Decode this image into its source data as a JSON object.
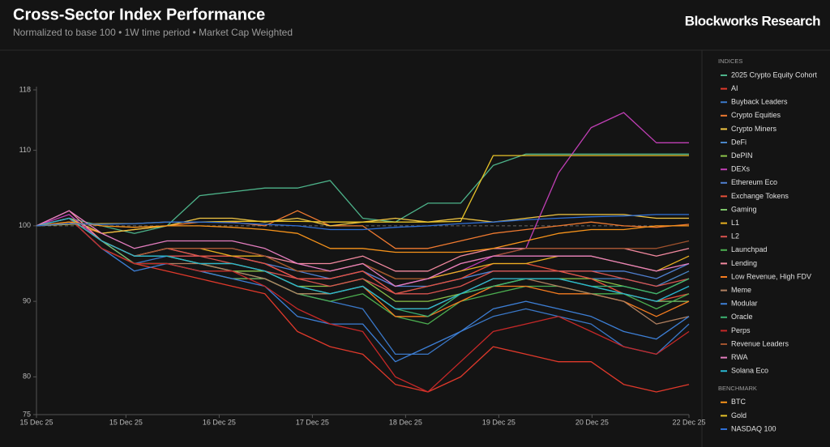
{
  "brand": "Blockworks Research",
  "chart_data": {
    "type": "line",
    "title": "Cross-Sector Index Performance",
    "subtitle": "Normalized to base 100 • 1W time period • Market Cap Weighted",
    "x": [
      0,
      0.35,
      0.7,
      1.05,
      1.4,
      1.75,
      2.1,
      2.45,
      2.8,
      3.15,
      3.5,
      3.85,
      4.2,
      4.55,
      4.9,
      5.25,
      5.6,
      5.95,
      6.3,
      6.65,
      7
    ],
    "xlim": [
      0,
      7
    ],
    "xticks": [
      {
        "value": 0,
        "label": "15 Dec 25"
      },
      {
        "value": 0.96,
        "label": "15 Dec 25"
      },
      {
        "value": 1.96,
        "label": "16 Dec 25"
      },
      {
        "value": 2.96,
        "label": "17 Dec 25"
      },
      {
        "value": 3.96,
        "label": "18 Dec 25"
      },
      {
        "value": 4.96,
        "label": "19 Dec 25"
      },
      {
        "value": 5.96,
        "label": "20 Dec 25"
      },
      {
        "value": 7,
        "label": "22 Dec 25"
      }
    ],
    "ylim": [
      75,
      118
    ],
    "yticks": [
      75,
      80,
      90,
      100,
      110,
      118
    ],
    "baseline": 100,
    "grid": false,
    "series": [
      {
        "name": "2025 Crypto Equity Cohort",
        "group": "INDICES",
        "color": "#4db38a",
        "values": [
          100,
          101,
          100,
          99,
          100,
          104,
          104.5,
          105,
          105,
          106,
          101,
          100.5,
          103,
          103,
          108,
          109.5,
          109.5,
          109.5,
          109.5,
          109.5,
          109.5
        ]
      },
      {
        "name": "AI",
        "group": "INDICES",
        "color": "#e0392b",
        "values": [
          100,
          101,
          97,
          95,
          94,
          93,
          92,
          91,
          86,
          84,
          83,
          79,
          78,
          80,
          84,
          83,
          82,
          82,
          79,
          78,
          79
        ]
      },
      {
        "name": "Buyback Leaders",
        "group": "INDICES",
        "color": "#3a78c9",
        "values": [
          100,
          101,
          98,
          95,
          96,
          95,
          94,
          93,
          91,
          90,
          89,
          83,
          83,
          86,
          88,
          89,
          88,
          87,
          84,
          83,
          87
        ]
      },
      {
        "name": "Crypto Equities",
        "group": "INDICES",
        "color": "#f07a30",
        "values": [
          100,
          100.5,
          99,
          99.5,
          100,
          100.5,
          100.5,
          100,
          102,
          100,
          100,
          97,
          97,
          98,
          99,
          99.5,
          100,
          100.5,
          100,
          99.8,
          100.2
        ]
      },
      {
        "name": "Crypto Miners",
        "group": "INDICES",
        "color": "#f2c744",
        "values": [
          100,
          101,
          99,
          99.5,
          100,
          101,
          101,
          100.5,
          101,
          100,
          100.5,
          101,
          100.5,
          101,
          100.5,
          101,
          101.5,
          101.5,
          101.5,
          101,
          101
        ]
      },
      {
        "name": "DeFi",
        "group": "INDICES",
        "color": "#4a86c8",
        "values": [
          100,
          101,
          98,
          96,
          97,
          96,
          96,
          95,
          93,
          93,
          94,
          91,
          92,
          93,
          94,
          94,
          94,
          93,
          93,
          92,
          94
        ]
      },
      {
        "name": "DePIN",
        "group": "INDICES",
        "color": "#8bc34a",
        "values": [
          100,
          101,
          98,
          96,
          96,
          95,
          94,
          94,
          92,
          92,
          93,
          90,
          90,
          91,
          92,
          93,
          93,
          93,
          92,
          91,
          93
        ]
      },
      {
        "name": "DEXs",
        "group": "INDICES",
        "color": "#c03fb5",
        "values": [
          100,
          101.5,
          98,
          96,
          96,
          96,
          96,
          95,
          93,
          93,
          94,
          92,
          93,
          94,
          96,
          97,
          107,
          113,
          115,
          111,
          111
        ]
      },
      {
        "name": "Ethereum Eco",
        "group": "INDICES",
        "color": "#4f7fd0",
        "values": [
          100,
          101,
          98,
          96,
          97,
          96,
          96,
          95,
          94,
          93,
          94,
          92,
          92,
          93,
          94,
          94,
          94,
          94,
          94,
          93,
          95
        ]
      },
      {
        "name": "Exchange Tokens",
        "group": "INDICES",
        "color": "#e8503a",
        "values": [
          100,
          101,
          98,
          96,
          97,
          96,
          96,
          95,
          93,
          93,
          94,
          91,
          92,
          93,
          95,
          95,
          94,
          93,
          91,
          90,
          91
        ]
      },
      {
        "name": "Gaming",
        "group": "INDICES",
        "color": "#7cc36a",
        "values": [
          100,
          101,
          98,
          95,
          95,
          94,
          93,
          93,
          91,
          91,
          92,
          89,
          89,
          91,
          92,
          93,
          93,
          92,
          91,
          90,
          90
        ]
      },
      {
        "name": "L1",
        "group": "INDICES",
        "color": "#e8b020",
        "values": [
          100,
          101,
          98,
          96,
          97,
          97,
          96,
          96,
          94,
          94,
          95,
          93,
          93,
          94,
          95,
          95,
          96,
          96,
          95,
          94,
          96
        ]
      },
      {
        "name": "L2",
        "group": "INDICES",
        "color": "#d9534f",
        "values": [
          100,
          101,
          98,
          96,
          96,
          96,
          95,
          94,
          93,
          92,
          93,
          91,
          91,
          92,
          94,
          94,
          94,
          94,
          93,
          92,
          93
        ]
      },
      {
        "name": "Launchpad",
        "group": "INDICES",
        "color": "#4caf50",
        "values": [
          100,
          101,
          97,
          95,
          95,
          94,
          94,
          93,
          91,
          90,
          91,
          88,
          87,
          90,
          91,
          92,
          92,
          91,
          91,
          89,
          91
        ]
      },
      {
        "name": "Lending",
        "group": "INDICES",
        "color": "#f48aa0",
        "values": [
          100,
          102,
          98,
          96,
          97,
          97,
          97,
          96,
          95,
          95,
          96,
          94,
          94,
          96,
          97,
          97,
          97,
          97,
          97,
          96,
          97
        ]
      },
      {
        "name": "Low Revenue, High FDV",
        "group": "INDICES",
        "color": "#f57c1f",
        "values": [
          100,
          101,
          98,
          96,
          96,
          95,
          95,
          94,
          92,
          91,
          92,
          88,
          88,
          90,
          92,
          92,
          91,
          91,
          90,
          88,
          90
        ]
      },
      {
        "name": "Meme",
        "group": "INDICES",
        "color": "#b08060",
        "values": [
          100,
          101,
          97,
          95,
          95,
          95,
          94,
          93,
          91,
          91,
          92,
          89,
          89,
          91,
          93,
          93,
          92,
          91,
          90,
          87,
          88
        ]
      },
      {
        "name": "Modular",
        "group": "INDICES",
        "color": "#3d7fd6",
        "values": [
          100,
          101,
          97,
          94,
          95,
          94,
          93,
          92,
          88,
          87,
          87,
          82,
          84,
          86,
          89,
          90,
          89,
          88,
          86,
          85,
          88
        ]
      },
      {
        "name": "Oracle",
        "group": "INDICES",
        "color": "#3cb371",
        "values": [
          100,
          101,
          98,
          96,
          96,
          95,
          95,
          94,
          92,
          91,
          92,
          89,
          88,
          91,
          92,
          93,
          93,
          92,
          92,
          91,
          93
        ]
      },
      {
        "name": "Perps",
        "group": "INDICES",
        "color": "#c62828",
        "values": [
          100,
          101,
          97,
          95,
          95,
          94,
          94,
          92,
          89,
          87,
          86,
          80,
          78,
          82,
          86,
          87,
          88,
          86,
          84,
          83,
          86
        ]
      },
      {
        "name": "Revenue Leaders",
        "group": "INDICES",
        "color": "#a0522d",
        "values": [
          100,
          101,
          98,
          96,
          97,
          97,
          97,
          96,
          94,
          94,
          95,
          93,
          93,
          95,
          96,
          97,
          97,
          97,
          97,
          97,
          98
        ]
      },
      {
        "name": "RWA",
        "group": "INDICES",
        "color": "#e57ec0",
        "values": [
          100,
          102,
          99,
          97,
          98,
          98,
          98,
          97,
          95,
          94,
          95,
          92,
          93,
          95,
          96,
          96,
          96,
          96,
          95,
          94,
          95
        ]
      },
      {
        "name": "Solana Eco",
        "group": "INDICES",
        "color": "#29b6d1",
        "values": [
          100,
          101,
          98,
          96,
          96,
          95,
          95,
          94,
          92,
          91,
          92,
          89,
          89,
          91,
          93,
          93,
          93,
          92,
          91,
          90,
          92
        ]
      },
      {
        "name": "BTC",
        "group": "BENCHMARK",
        "color": "#f7931a",
        "values": [
          100,
          100.5,
          100,
          99.8,
          100,
          100,
          99.8,
          99.5,
          99,
          97,
          97,
          96.5,
          96.5,
          96.5,
          97,
          98,
          99,
          99.5,
          99.5,
          100,
          100
        ]
      },
      {
        "name": "Gold",
        "group": "BENCHMARK",
        "color": "#e6c229",
        "values": [
          100,
          100.2,
          100.3,
          100.3,
          100.5,
          100.5,
          100.6,
          100.6,
          100.6,
          100.5,
          100.5,
          100.5,
          100.5,
          100.6,
          109.3,
          109.3,
          109.3,
          109.3,
          109.3,
          109.3,
          109.3
        ]
      },
      {
        "name": "NASDAQ 100",
        "group": "BENCHMARK",
        "color": "#2f6fd6",
        "values": [
          100,
          100.3,
          100.2,
          100.3,
          100.5,
          100.5,
          100.4,
          100.2,
          100,
          99.5,
          99.5,
          99.8,
          100,
          100.3,
          100.5,
          100.8,
          101,
          101.2,
          101.3,
          101.5,
          101.5
        ]
      }
    ]
  }
}
